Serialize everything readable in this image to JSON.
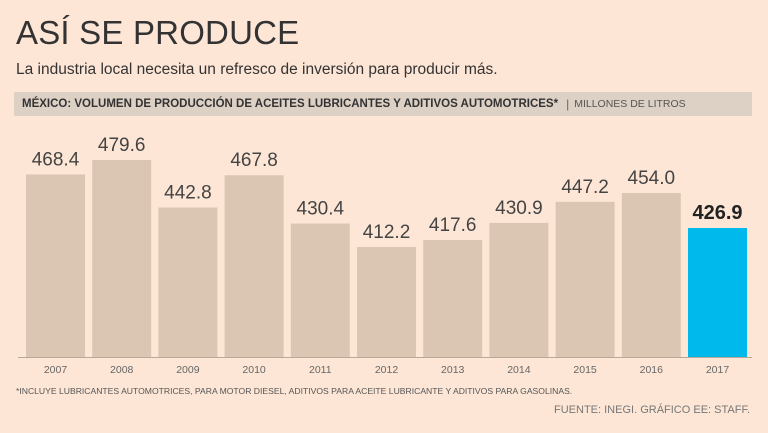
{
  "header": {
    "title": "ASÍ SE PRODUCE",
    "subtitle": "La industria local necesita un refresco de inversión para producir más.",
    "bar_title": "MÉXICO: VOLUMEN DE PRODUCCIÓN DE ACEITES LUBRICANTES Y ADITIVOS AUTOMOTRICES*",
    "separator": "|",
    "units": "MILLONES DE LITROS"
  },
  "colors": {
    "bar": "#dbc6b3",
    "highlight": "#00b9ec",
    "background": "#fde6d6"
  },
  "chart_data": {
    "type": "bar",
    "title": "MÉXICO: VOLUMEN DE PRODUCCIÓN DE ACEITES LUBRICANTES Y ADITIVOS AUTOMOTRICES*",
    "ylabel": "MILLONES DE LITROS",
    "categories": [
      "2007",
      "2008",
      "2009",
      "2010",
      "2011",
      "2012",
      "2013",
      "2014",
      "2015",
      "2016",
      "2017"
    ],
    "values": [
      468.4,
      479.6,
      442.8,
      467.8,
      430.4,
      412.2,
      417.6,
      430.9,
      447.2,
      454.0,
      426.9
    ],
    "labels": [
      "468.4",
      "479.6",
      "442.8",
      "467.8",
      "430.4",
      "412.2",
      "417.6",
      "430.9",
      "447.2",
      "454.0",
      "426.9"
    ],
    "highlight_index": 10
  },
  "footer": {
    "footnote": "*INCLUYE LUBRICANTES AUTOMOTRICES, PARA MOTOR DIESEL, ADITIVOS PARA ACEITE LUBRICANTE Y ADITIVOS PARA GASOLINAS.",
    "source": "FUENTE: INEGI. GRÁFICO EE: STAFF."
  }
}
